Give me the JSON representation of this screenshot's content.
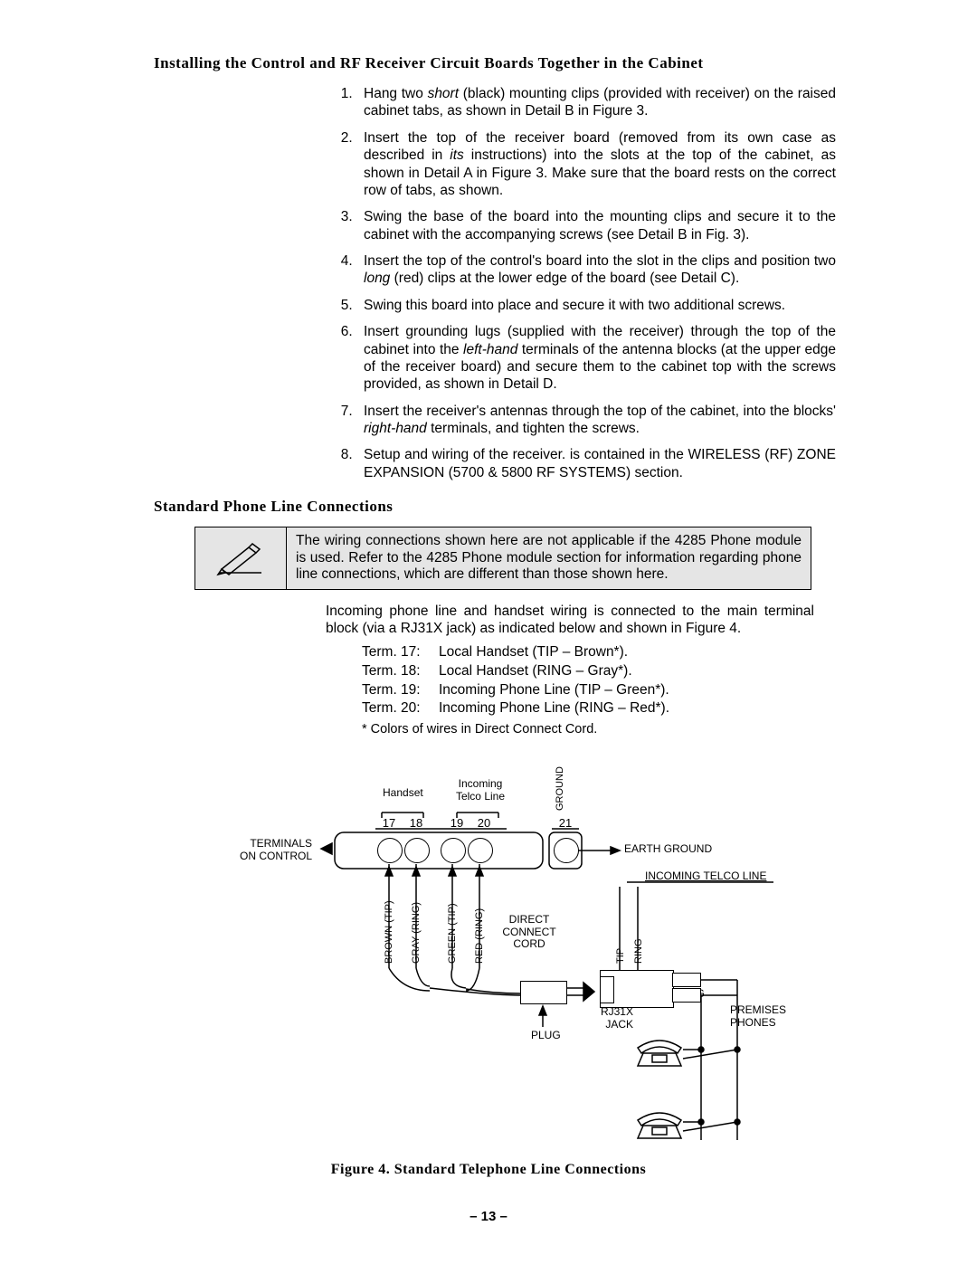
{
  "heading1": "Installing the Control and RF Receiver Circuit Boards Together in the Cabinet",
  "install_steps": [
    {
      "pre": "Hang two ",
      "em": "short",
      "post": " (black) mounting clips (provided with receiver) on the raised cabinet tabs, as shown in Detail B in Figure 3."
    },
    {
      "pre": "Insert the top of the receiver board (removed from its own case as described in ",
      "em": "its",
      "post": " instructions) into the slots at the top of the cabinet, as shown in Detail A in Figure 3. Make sure that the board rests on the correct row of tabs, as shown."
    },
    {
      "pre": "Swing the base of the board into the mounting clips and secure it to the cabinet with the accompanying screws (see Detail B in Fig. 3).",
      "em": "",
      "post": ""
    },
    {
      "pre": "Insert the top of the control's board into the slot in the clips and position two ",
      "em": "long",
      "post": " (red) clips at the lower edge of the board (see Detail C)."
    },
    {
      "pre": "Swing this board into place and secure it with two additional screws.",
      "em": "",
      "post": ""
    },
    {
      "pre": "Insert grounding lugs (supplied with the receiver) through the top of the cabinet into the ",
      "em": "left-hand",
      "post": " terminals of the antenna blocks (at the upper edge of the receiver board) and secure them to the cabinet top with the screws provided, as shown in Detail D."
    },
    {
      "pre": "Insert the receiver's antennas through the top of the cabinet, into the blocks' ",
      "em": "right-hand",
      "post": " terminals, and tighten the screws."
    },
    {
      "pre": "Setup and wiring of the receiver. is contained in the WIRELESS (RF) ZONE EXPANSION (5700 & 5800 RF SYSTEMS) section.",
      "em": "",
      "post": ""
    }
  ],
  "heading2": "Standard Phone Line Connections",
  "notebox_text": "The wiring connections shown here are not applicable if the 4285 Phone module is used. Refer to the 4285 Phone module section for information regarding phone line connections, which are different than those shown here.",
  "intro_para": "Incoming phone line and handset wiring is connected to the main terminal block (via a RJ31X jack) as indicated below and shown in Figure 4.",
  "terminals": [
    {
      "k": "Term. 17:",
      "v": "Local Handset (TIP – Brown*)."
    },
    {
      "k": "Term. 18:",
      "v": "Local Handset (RING – Gray*)."
    },
    {
      "k": "Term. 19:",
      "v": "Incoming Phone Line (TIP – Green*)."
    },
    {
      "k": "Term. 20:",
      "v": "Incoming Phone Line (RING – Red*)."
    }
  ],
  "footnote": "* Colors of wires in Direct Connect Cord.",
  "figure_caption": "Figure 4.  Standard Telephone Line Connections",
  "page_number": "– 13 –",
  "diagram": {
    "labels": {
      "terminals_on_control": "TERMINALS\nON CONTROL",
      "handset": "Handset",
      "incoming_telco": "Incoming\nTelco Line",
      "ground_v": "GROUND",
      "earth_ground": "EARTH GROUND",
      "incoming_line": "INCOMING TELCO LINE",
      "direct_connect": "DIRECT\nCONNECT\nCORD",
      "plug": "PLUG",
      "rj31x": "RJ31X\nJACK",
      "tip": "TIP",
      "ring": "RING",
      "premises": "PREMISES\nPHONES",
      "brown": "BROWN (TIP)",
      "gray": "GRAY (RING)",
      "green": "GREEN (TIP)",
      "red": "RED (RING)"
    },
    "term_numbers": [
      "17",
      "18",
      "19",
      "20",
      "21"
    ],
    "colors": {
      "stroke": "#000000",
      "fill_bg": "#ffffff",
      "notebox_bg": "#e5e5e5"
    }
  }
}
